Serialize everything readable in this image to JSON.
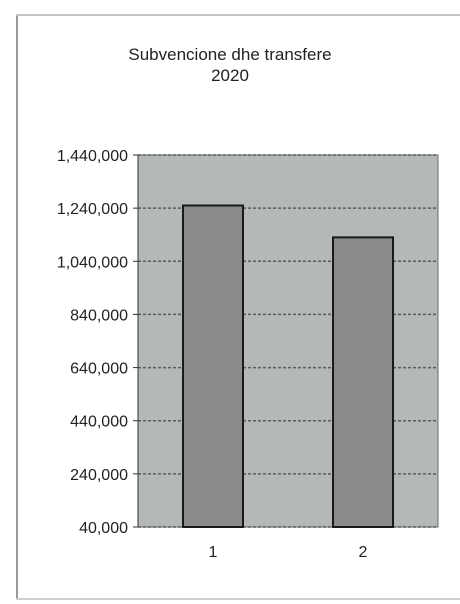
{
  "chart_data": {
    "type": "bar",
    "title": "Subvencione dhe transfere",
    "subtitle": "2020",
    "categories": [
      "1",
      "2"
    ],
    "values": [
      1250000,
      1130000
    ],
    "ylim": [
      40000,
      1440000
    ],
    "yticks": [
      {
        "value": 40000,
        "label": "40,000"
      },
      {
        "value": 240000,
        "label": "240,000"
      },
      {
        "value": 440000,
        "label": "440,000"
      },
      {
        "value": 640000,
        "label": "640,000"
      },
      {
        "value": 840000,
        "label": "840,000"
      },
      {
        "value": 1040000,
        "label": "1,040,000"
      },
      {
        "value": 1240000,
        "label": "1,240,000"
      },
      {
        "value": 1440000,
        "label": "1,440,000"
      }
    ],
    "grid": true,
    "legend": "none",
    "colors": {
      "plot_background": "#b4b8b8",
      "bar_fill": "#8a8a8a",
      "bar_stroke": "#1a1a1a",
      "gridline": "#5a5a5a"
    }
  }
}
